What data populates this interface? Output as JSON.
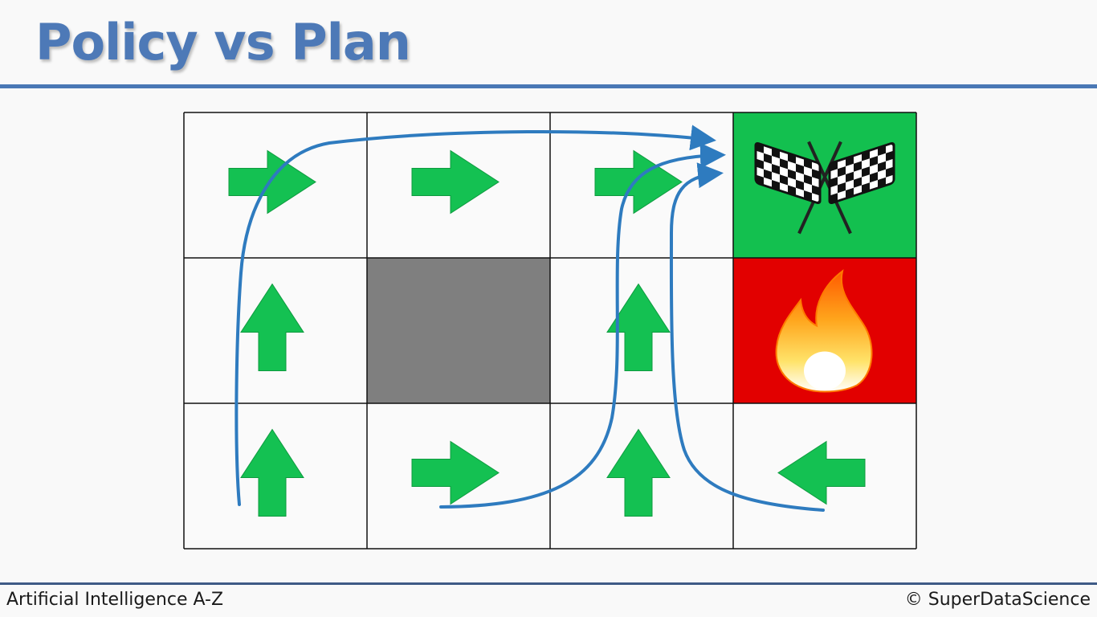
{
  "slide": {
    "title": "Policy vs Plan"
  },
  "grid": {
    "rows": 3,
    "cols": 4,
    "cells": [
      {
        "row": 0,
        "col": 0,
        "type": "arrow",
        "direction": "right"
      },
      {
        "row": 0,
        "col": 1,
        "type": "arrow",
        "direction": "right"
      },
      {
        "row": 0,
        "col": 2,
        "type": "arrow",
        "direction": "right"
      },
      {
        "row": 0,
        "col": 3,
        "type": "goal",
        "icon": "checkered-flags-icon"
      },
      {
        "row": 1,
        "col": 0,
        "type": "arrow",
        "direction": "up"
      },
      {
        "row": 1,
        "col": 1,
        "type": "wall"
      },
      {
        "row": 1,
        "col": 2,
        "type": "arrow",
        "direction": "up"
      },
      {
        "row": 1,
        "col": 3,
        "type": "fire",
        "icon": "fire-icon"
      },
      {
        "row": 2,
        "col": 0,
        "type": "arrow",
        "direction": "up"
      },
      {
        "row": 2,
        "col": 1,
        "type": "arrow",
        "direction": "right"
      },
      {
        "row": 2,
        "col": 2,
        "type": "arrow",
        "direction": "up"
      },
      {
        "row": 2,
        "col": 3,
        "type": "arrow",
        "direction": "left"
      }
    ],
    "colors": {
      "arrow": "#14c152",
      "wall": "#7f7f7f",
      "goal": "#13c04f",
      "fire": "#e20000",
      "path": "#2e7bbf"
    }
  },
  "footer": {
    "left": "Artificial Intelligence A-Z",
    "right": "© SuperDataScience"
  }
}
